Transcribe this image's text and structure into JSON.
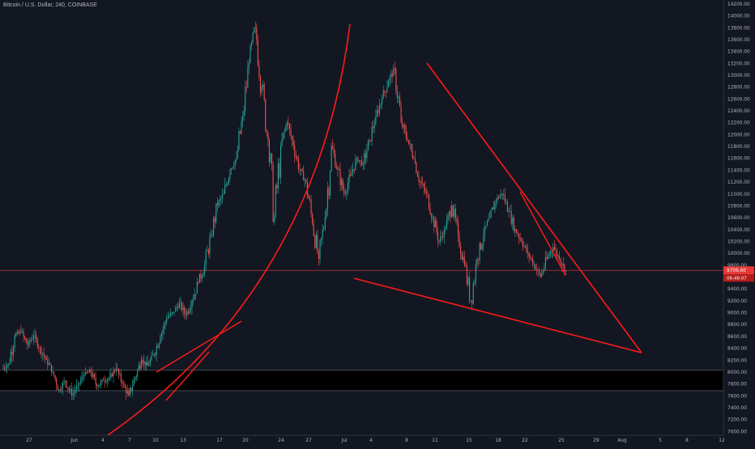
{
  "header": {
    "symbol_title": "Bitcoin / U.S. Dollar, 240, COINBASE"
  },
  "colors": {
    "background": "#131722",
    "up_candle": "#26a69a",
    "down_candle": "#ef5350",
    "drawing": "#ff1a1a",
    "price_tag": "#e53935",
    "support_box": "#000000",
    "axis_text": "#b2b5be"
  },
  "chart_data": {
    "type": "candlestick",
    "y_axis_ticks": [
      "14200.00",
      "14000.00",
      "13800.00",
      "13600.00",
      "13400.00",
      "13200.00",
      "13000.00",
      "12800.00",
      "12600.00",
      "12400.00",
      "12200.00",
      "12000.00",
      "11800.00",
      "11600.00",
      "11400.00",
      "11200.00",
      "11000.00",
      "10800.00",
      "10600.00",
      "10400.00",
      "10200.00",
      "10000.00",
      "9800.00",
      "9600.00",
      "9400.00",
      "9200.00",
      "9000.00",
      "8800.00",
      "8600.00",
      "8400.00",
      "8200.00",
      "8000.00",
      "7800.00",
      "7600.00",
      "7400.00",
      "7200.00",
      "7000.00"
    ],
    "x_axis_ticks": [
      "27",
      "Jun",
      "4",
      "7",
      "10",
      "13",
      "17",
      "20",
      "24",
      "27",
      "Jul",
      "4",
      "8",
      "11",
      "15",
      "18",
      "22",
      "25",
      "29",
      "Aug",
      "5",
      "8",
      "12"
    ],
    "ylim": [
      6930,
      14260
    ],
    "current_price_label": "9706.60",
    "countdown_label": "06:48:07",
    "current_price": 9706.6,
    "support_zone": {
      "from": 7680,
      "to": 8030
    },
    "series": [
      {
        "segment": "late-may-to-mid-june",
        "start": "2019-05-26",
        "points": [
          [
            8050,
            8130
          ],
          [
            8130,
            8600
          ],
          [
            8600,
            8670
          ],
          [
            8670,
            8450
          ],
          [
            8450,
            8600
          ],
          [
            8600,
            8400
          ],
          [
            8400,
            8200
          ],
          [
            8200,
            8000
          ],
          [
            8000,
            7700
          ],
          [
            7700,
            7850
          ],
          [
            7850,
            7600
          ],
          [
            7600,
            7780
          ],
          [
            7780,
            7950
          ],
          [
            7950,
            8000
          ],
          [
            8000,
            7750
          ],
          [
            7750,
            7850
          ],
          [
            7850,
            7900
          ],
          [
            7900,
            8050
          ],
          [
            8050,
            7800
          ],
          [
            7800,
            7600
          ],
          [
            7600,
            7900
          ],
          [
            7900,
            8200
          ],
          [
            8200,
            8100
          ],
          [
            8100,
            8300
          ],
          [
            8300,
            8600
          ],
          [
            8600,
            8900
          ],
          [
            8900,
            9000
          ],
          [
            9000,
            9150
          ],
          [
            9150,
            8950
          ],
          [
            8950,
            9200
          ],
          [
            9200,
            9500
          ],
          [
            9500,
            9800
          ],
          [
            9800,
            10300
          ],
          [
            10300,
            10800
          ],
          [
            10800,
            11000
          ],
          [
            11000,
            11400
          ],
          [
            11400,
            11600
          ],
          [
            11600,
            12300
          ],
          [
            12300,
            13200
          ],
          [
            13200,
            13800
          ],
          [
            13800,
            12800
          ],
          [
            12800,
            11900
          ],
          [
            11900,
            10600
          ],
          [
            10600,
            11800
          ],
          [
            11800,
            12200
          ],
          [
            12200,
            11800
          ],
          [
            11800,
            11400
          ],
          [
            11400,
            11200
          ],
          [
            11200,
            10500
          ],
          [
            10500,
            9900
          ]
        ]
      },
      {
        "segment": "july",
        "start": "2019-07-01",
        "points": [
          [
            9900,
            10600
          ],
          [
            10600,
            11800
          ],
          [
            11800,
            11400
          ],
          [
            11400,
            11000
          ],
          [
            11000,
            11300
          ],
          [
            11300,
            11600
          ],
          [
            11600,
            11500
          ],
          [
            11500,
            11900
          ],
          [
            11900,
            12300
          ],
          [
            12300,
            12600
          ],
          [
            12600,
            12900
          ],
          [
            12900,
            13100
          ],
          [
            13100,
            12200
          ],
          [
            12200,
            11900
          ],
          [
            11900,
            11600
          ],
          [
            11600,
            11200
          ],
          [
            11200,
            11000
          ],
          [
            11000,
            10600
          ],
          [
            10600,
            10200
          ],
          [
            10200,
            10400
          ],
          [
            10400,
            10800
          ],
          [
            10800,
            10300
          ],
          [
            10300,
            9800
          ],
          [
            9800,
            9200
          ],
          [
            9200,
            9900
          ],
          [
            9900,
            10300
          ],
          [
            10300,
            10600
          ],
          [
            10600,
            10900
          ],
          [
            10900,
            11000
          ],
          [
            11000,
            10700
          ],
          [
            10700,
            10400
          ],
          [
            10400,
            10200
          ],
          [
            10200,
            10000
          ],
          [
            10000,
            9800
          ],
          [
            9800,
            9600
          ],
          [
            9600,
            9900
          ],
          [
            9900,
            10100
          ],
          [
            10100,
            9900
          ],
          [
            9900,
            9706.6
          ]
        ]
      }
    ],
    "annotations": [
      {
        "type": "arc",
        "desc": "parabolic curve"
      },
      {
        "type": "channel",
        "desc": "rising wedge June"
      },
      {
        "type": "triangle",
        "desc": "descending triangle July"
      }
    ]
  }
}
